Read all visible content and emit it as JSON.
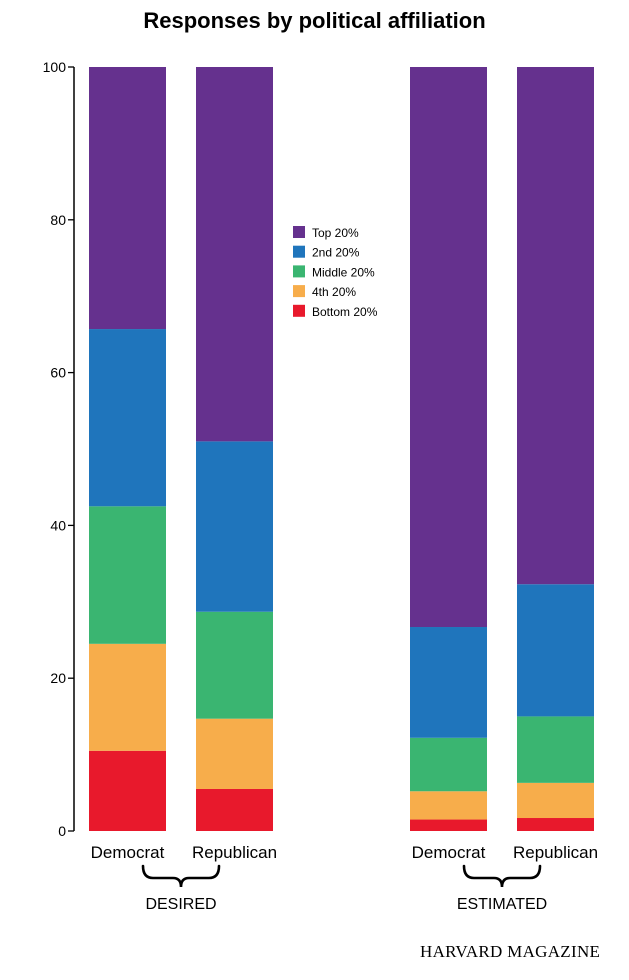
{
  "chart_data": {
    "type": "bar",
    "stacked": true,
    "title": "Responses by political affiliation",
    "categories": [
      "Democrat",
      "Republican",
      "Democrat",
      "Republican"
    ],
    "groups": [
      {
        "label": "DESIRED",
        "categories": [
          0,
          1
        ]
      },
      {
        "label": "ESTIMATED",
        "categories": [
          2,
          3
        ]
      }
    ],
    "series": [
      {
        "name": "Bottom 20%",
        "color": "#e8192c",
        "values": [
          10.5,
          5.5,
          1.5,
          1.7
        ]
      },
      {
        "name": "4th 20%",
        "color": "#f7ad4b",
        "values": [
          14.0,
          9.2,
          3.7,
          4.6
        ]
      },
      {
        "name": "Middle 20%",
        "color": "#3ab571",
        "values": [
          18.0,
          14.0,
          7.0,
          8.7
        ]
      },
      {
        "name": "2nd 20%",
        "color": "#1f75bc",
        "values": [
          23.2,
          22.3,
          14.5,
          17.3
        ]
      },
      {
        "name": "Top 20%",
        "color": "#65318e",
        "values": [
          34.3,
          49.0,
          73.3,
          67.7
        ]
      }
    ],
    "legend_order": [
      "Top 20%",
      "2nd 20%",
      "Middle 20%",
      "4th 20%",
      "Bottom 20%"
    ],
    "legend_position": "top-center",
    "yticks": [
      0,
      20,
      40,
      60,
      80,
      100
    ],
    "ylim": [
      0,
      100
    ],
    "grid": false
  },
  "credit": "HARVARD MAGAZINE"
}
